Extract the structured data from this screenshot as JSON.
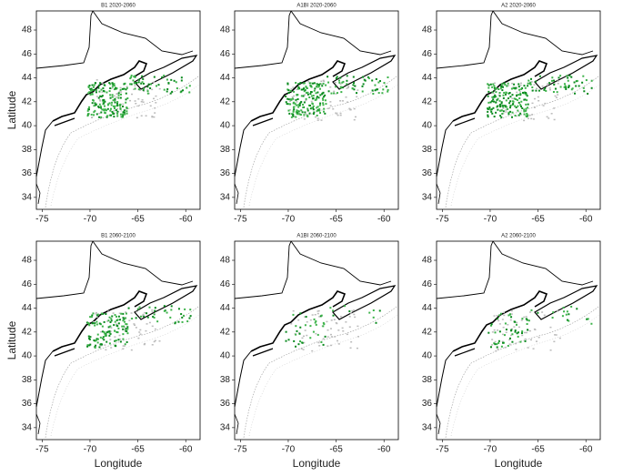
{
  "panels": [
    {
      "title": "B1 2020-2060"
    },
    {
      "title": "A1BI 2020-2060"
    },
    {
      "title": "A2 2020-2060"
    },
    {
      "title": "B1 2060-2100"
    },
    {
      "title": "A1BI 2060-2100"
    },
    {
      "title": "A2 2060-2100"
    }
  ],
  "xlim": [
    -75.6,
    -58.5
  ],
  "ylim": [
    33,
    49.6
  ],
  "xticks": [
    -75,
    -70,
    -65,
    -60
  ],
  "yticks": [
    34,
    36,
    38,
    40,
    42,
    44,
    46,
    48
  ],
  "xlabel": "Longitude",
  "ylabel": "Latitude"
}
